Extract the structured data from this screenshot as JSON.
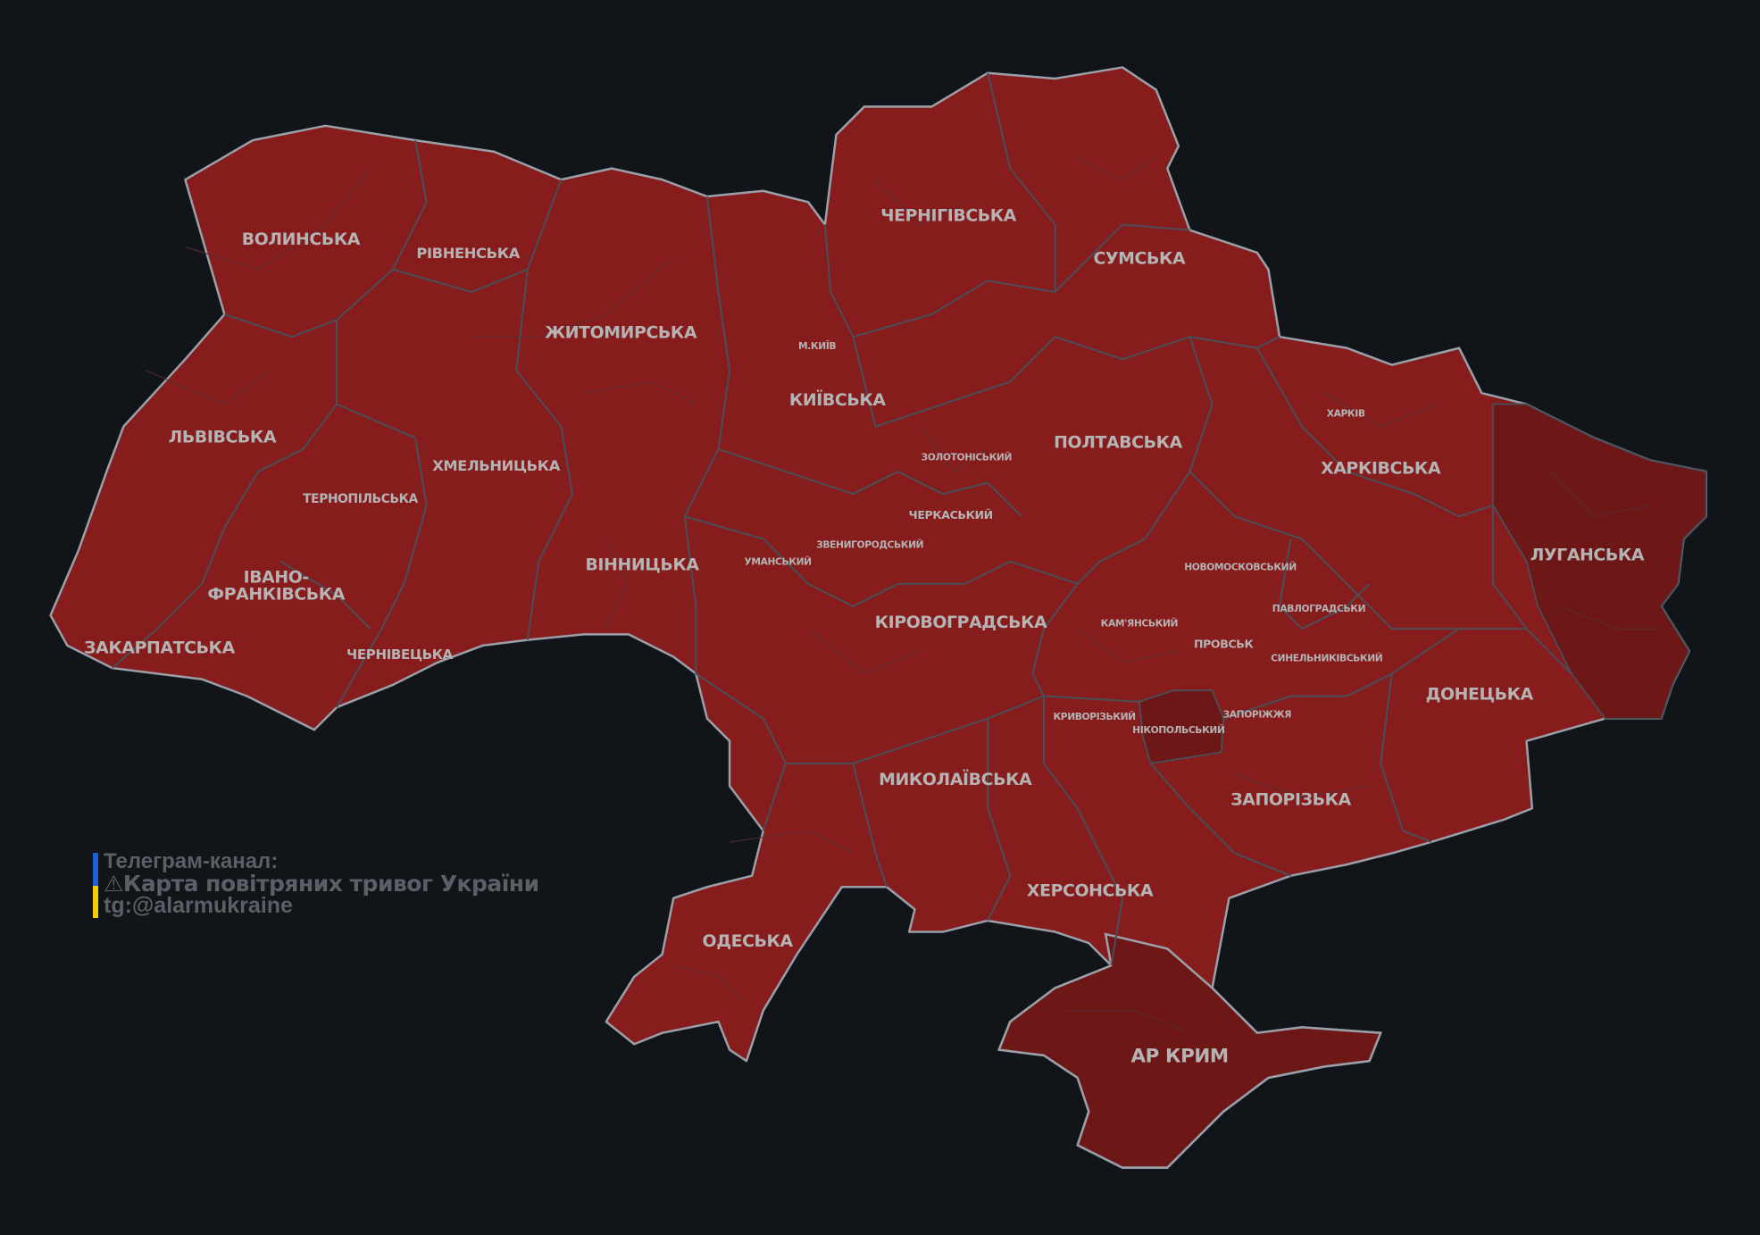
{
  "map": {
    "colors": {
      "background": "#111419",
      "alert_region": "#861c1c",
      "occupied_region": "#6d1717",
      "border": "#4a4e58",
      "outline": "#9aa0aa",
      "label": "#b5b3b3"
    },
    "oblasts": [
      {
        "name": "ВОЛИНСЬКА",
        "status": "alert"
      },
      {
        "name": "РІВНЕНСЬКА",
        "status": "alert"
      },
      {
        "name": "ЖИТОМИРСЬКА",
        "status": "alert"
      },
      {
        "name": "ЧЕРНІГІВСЬКА",
        "status": "alert"
      },
      {
        "name": "СУМСЬКА",
        "status": "alert"
      },
      {
        "name": "М.КИЇВ",
        "status": "alert"
      },
      {
        "name": "КИЇВСЬКА",
        "status": "alert"
      },
      {
        "name": "ЛЬВІВСЬКА",
        "status": "alert"
      },
      {
        "name": "ХМЕЛЬНИЦЬКА",
        "status": "alert"
      },
      {
        "name": "ТЕРНОПІЛЬСЬКА",
        "status": "alert"
      },
      {
        "name": "ПОЛТАВСЬКА",
        "status": "alert"
      },
      {
        "name": "ХАРКІВ",
        "status": "alert"
      },
      {
        "name": "ХАРКІВСЬКА",
        "status": "alert"
      },
      {
        "name": "ІВАНО-",
        "status": "alert"
      },
      {
        "name": "ФРАНКІВСЬКА",
        "status": "alert"
      },
      {
        "name": "ВІННИЦЬКА",
        "status": "alert"
      },
      {
        "name": "ЛУГАНСЬКА",
        "status": "occupied"
      },
      {
        "name": "ЗАКАРПАТСЬКА",
        "status": "alert"
      },
      {
        "name": "ЧЕРНІВЕЦЬКА",
        "status": "alert"
      },
      {
        "name": "КІРОВОГРАДСЬКА",
        "status": "alert"
      },
      {
        "name": "ДОНЕЦЬКА",
        "status": "alert"
      },
      {
        "name": "МИКОЛАЇВСЬКА",
        "status": "alert"
      },
      {
        "name": "ЗАПОРІЗЬКА",
        "status": "alert"
      },
      {
        "name": "ХЕРСОНСЬКА",
        "status": "alert"
      },
      {
        "name": "ОДЕСЬКА",
        "status": "alert"
      },
      {
        "name": "АР КРИМ",
        "status": "occupied"
      }
    ],
    "raions": [
      "ЗОЛОТОНІСЬКИЙ",
      "ЧЕРКАСЬКИЙ",
      "УМАНСЬКИЙ",
      "ЗВЕНИГОРОДСЬКИЙ",
      "НОВОМОСКОВСЬКИЙ",
      "ПАВЛОГРАДСЬКИ",
      "КАМ'ЯНСЬКИЙ",
      "ПРОВСЬК",
      "СИНЕЛЬНИКІВСЬКИЙ",
      "КРИВОРІЗЬКИЙ",
      "ЗАПОРІЖЖЯ",
      "НІКОПОЛЬСЬКИЙ"
    ]
  },
  "credit": {
    "line1": "Телеграм-канал:",
    "line2": "⚠Карта повітряних тривог України",
    "line3": "tg:@alarmukraine",
    "flag_colors": [
      "#1d5fd6",
      "#f2cd00"
    ]
  }
}
